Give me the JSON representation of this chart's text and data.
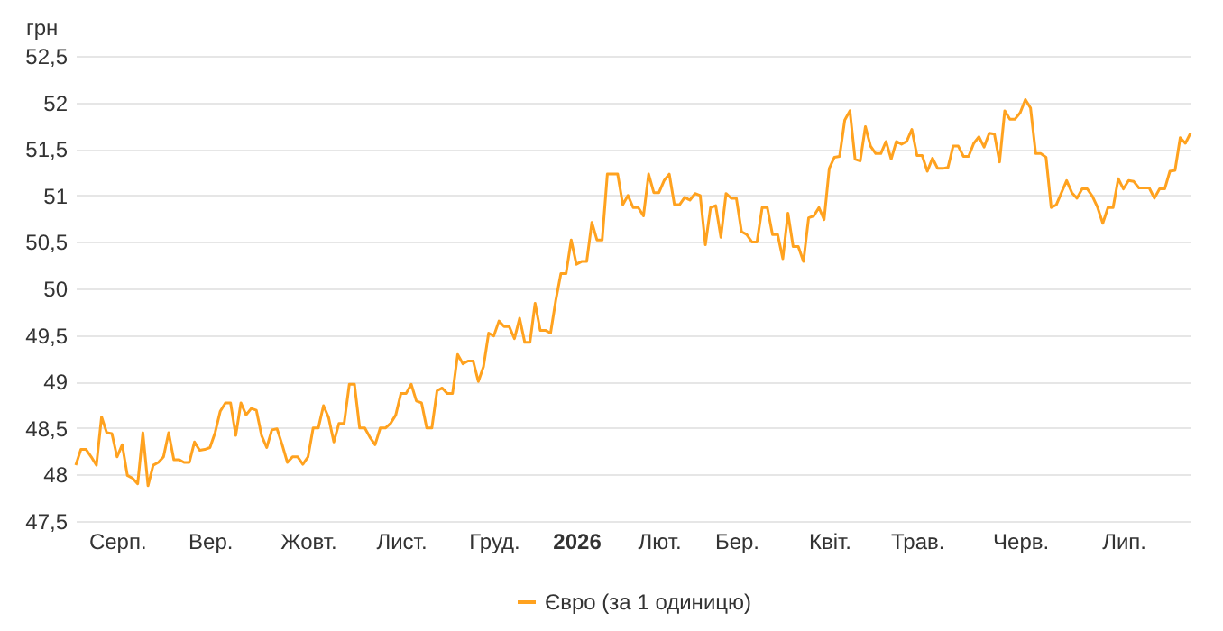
{
  "chart_data": {
    "type": "line",
    "ylabel": "грн",
    "legend": "bottom",
    "grid": "y",
    "ylim": [
      47.5,
      52.5
    ],
    "yticks": [
      {
        "value": 47.5,
        "label": "47,5"
      },
      {
        "value": 48,
        "label": "48"
      },
      {
        "value": 48.5,
        "label": "48,5"
      },
      {
        "value": 49,
        "label": "49"
      },
      {
        "value": 49.5,
        "label": "49,5"
      },
      {
        "value": 50,
        "label": "50"
      },
      {
        "value": 50.5,
        "label": "50,5"
      },
      {
        "value": 51,
        "label": "51"
      },
      {
        "value": 51.5,
        "label": "51,5"
      },
      {
        "value": 52,
        "label": "52"
      },
      {
        "value": 52.5,
        "label": "52,5"
      }
    ],
    "categories": [
      null,
      null,
      null,
      null,
      null,
      null,
      null,
      null,
      "Серп.",
      null,
      null,
      null,
      null,
      null,
      null,
      null,
      null,
      null,
      null,
      null,
      null,
      null,
      null,
      null,
      null,
      null,
      "Вер.",
      null,
      null,
      null,
      null,
      null,
      null,
      null,
      null,
      null,
      null,
      null,
      null,
      null,
      null,
      null,
      null,
      null,
      null,
      "Жовт.",
      null,
      null,
      null,
      null,
      null,
      null,
      null,
      null,
      null,
      null,
      null,
      null,
      null,
      null,
      null,
      null,
      null,
      "Лист.",
      null,
      null,
      null,
      null,
      null,
      null,
      null,
      null,
      null,
      null,
      null,
      null,
      null,
      null,
      null,
      null,
      null,
      "Груд.",
      null,
      null,
      null,
      null,
      null,
      null,
      null,
      null,
      null,
      null,
      null,
      null,
      null,
      null,
      null,
      "2026",
      null,
      null,
      null,
      null,
      null,
      null,
      null,
      null,
      null,
      null,
      null,
      null,
      null,
      null,
      null,
      "Лют.",
      null,
      null,
      null,
      null,
      null,
      null,
      null,
      null,
      null,
      null,
      null,
      null,
      null,
      null,
      "Бер.",
      null,
      null,
      null,
      null,
      null,
      null,
      null,
      null,
      null,
      null,
      null,
      null,
      null,
      null,
      null,
      null,
      null,
      "Квіт.",
      null,
      null,
      null,
      null,
      null,
      null,
      null,
      null,
      null,
      null,
      null,
      null,
      null,
      null,
      null,
      null,
      "Трав.",
      null,
      null,
      null,
      null,
      null,
      null,
      null,
      null,
      null,
      null,
      null,
      null,
      null,
      null,
      null,
      null,
      null,
      null,
      null,
      "Черв.",
      null,
      null,
      null,
      null,
      null,
      null,
      null,
      null,
      null,
      null,
      null,
      null,
      null,
      null,
      null,
      null,
      null,
      null,
      null,
      "Лип.",
      null,
      null,
      null,
      null,
      null,
      null,
      null,
      null,
      null,
      null,
      null,
      null,
      null
    ],
    "series": [
      {
        "name": "Євро (за 1 одиницю)",
        "color": "#ffa21f",
        "values": [
          48.1,
          48.27,
          48.27,
          48.19,
          48.1,
          48.62,
          48.45,
          48.44,
          48.19,
          48.32,
          47.99,
          47.96,
          47.9,
          48.45,
          47.88,
          48.1,
          48.13,
          48.19,
          48.45,
          48.16,
          48.16,
          48.13,
          48.13,
          48.35,
          48.26,
          48.27,
          48.29,
          48.45,
          48.68,
          48.77,
          48.77,
          48.42,
          48.77,
          48.64,
          48.71,
          48.69,
          48.42,
          48.29,
          48.48,
          48.49,
          48.32,
          48.13,
          48.19,
          48.19,
          48.11,
          48.19,
          48.5,
          48.5,
          48.74,
          48.61,
          48.35,
          48.55,
          48.55,
          48.97,
          48.97,
          48.5,
          48.5,
          48.4,
          48.32,
          48.5,
          48.5,
          48.55,
          48.64,
          48.87,
          48.87,
          48.97,
          48.79,
          48.77,
          48.5,
          48.5,
          48.9,
          48.93,
          48.87,
          48.87,
          49.29,
          49.19,
          49.22,
          49.22,
          49.0,
          49.16,
          49.52,
          49.49,
          49.65,
          49.59,
          49.59,
          49.46,
          49.68,
          49.42,
          49.42,
          49.84,
          49.55,
          49.55,
          49.52,
          49.87,
          50.16,
          50.16,
          50.52,
          50.26,
          50.29,
          50.29,
          50.71,
          50.52,
          50.52,
          51.23,
          51.23,
          51.23,
          50.9,
          51.0,
          50.87,
          50.87,
          50.78,
          51.23,
          51.03,
          51.03,
          51.16,
          51.23,
          50.9,
          50.9,
          50.98,
          50.95,
          51.02,
          51.0,
          50.47,
          50.87,
          50.89,
          50.55,
          51.02,
          50.97,
          50.97,
          50.61,
          50.58,
          50.5,
          50.5,
          50.87,
          50.87,
          50.58,
          50.58,
          50.32,
          50.81,
          50.45,
          50.45,
          50.29,
          50.76,
          50.78,
          50.87,
          50.74,
          51.29,
          51.41,
          51.42,
          51.81,
          51.91,
          51.39,
          51.37,
          51.74,
          51.53,
          51.45,
          51.45,
          51.58,
          51.39,
          51.58,
          51.55,
          51.58,
          51.71,
          51.43,
          51.43,
          51.26,
          51.4,
          51.29,
          51.29,
          51.3,
          51.53,
          51.53,
          51.42,
          51.42,
          51.56,
          51.63,
          51.52,
          51.67,
          51.66,
          51.36,
          51.91,
          51.82,
          51.82,
          51.89,
          52.03,
          51.94,
          51.45,
          51.45,
          51.41,
          50.87,
          50.9,
          51.03,
          51.16,
          51.03,
          50.97,
          51.07,
          51.07,
          50.99,
          50.87,
          50.7,
          50.87,
          50.87,
          51.18,
          51.07,
          51.16,
          51.15,
          51.08,
          51.08,
          51.08,
          50.97,
          51.07,
          51.07,
          51.26,
          51.27,
          51.62,
          51.56,
          51.67
        ]
      }
    ]
  }
}
